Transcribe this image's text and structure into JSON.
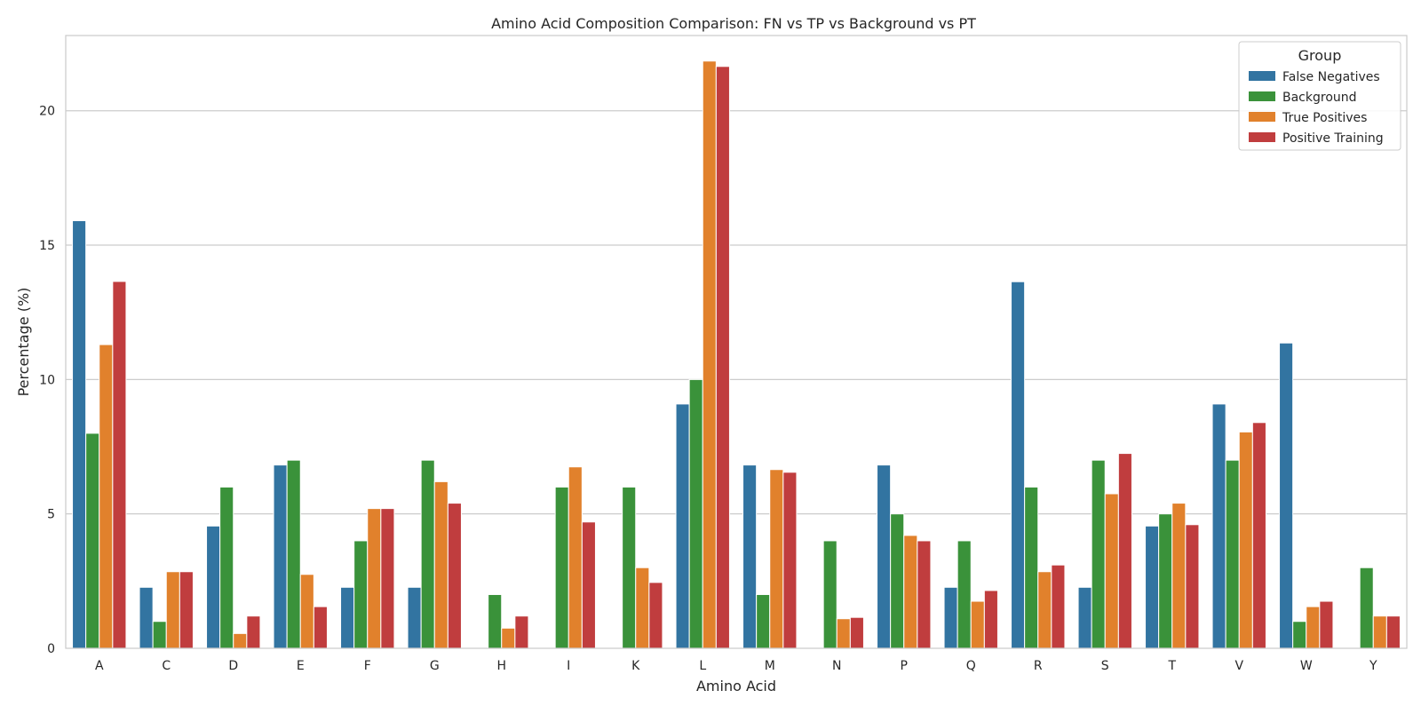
{
  "chart_data": {
    "type": "bar",
    "title": "Amino Acid Composition Comparison: FN vs TP vs Background vs PT",
    "xlabel": "Amino Acid",
    "ylabel": "Percentage (%)",
    "ylim": [
      0,
      22.8
    ],
    "yticks": [
      0,
      5,
      10,
      15,
      20
    ],
    "ytick_labels": [
      "0",
      "5",
      "10",
      "15",
      "20"
    ],
    "grid": true,
    "legend": {
      "title": "Group",
      "placement": "top-right"
    },
    "categories": [
      "A",
      "C",
      "D",
      "E",
      "F",
      "G",
      "H",
      "I",
      "K",
      "L",
      "M",
      "N",
      "P",
      "Q",
      "R",
      "S",
      "T",
      "V",
      "W",
      "Y"
    ],
    "series": [
      {
        "name": "False Negatives",
        "color": "#3274a1",
        "values": [
          15.91,
          2.27,
          4.55,
          6.82,
          2.27,
          2.27,
          0,
          0,
          0,
          9.09,
          6.82,
          0,
          6.82,
          2.27,
          13.64,
          2.27,
          4.55,
          9.09,
          11.36,
          0
        ]
      },
      {
        "name": "Background",
        "color": "#3a923a",
        "values": [
          8,
          1,
          6,
          7,
          4,
          7,
          2,
          6,
          6,
          10,
          2,
          4,
          5,
          4,
          6,
          7,
          5,
          7,
          1,
          3
        ]
      },
      {
        "name": "True Positives",
        "color": "#e1812c",
        "values": [
          11.3,
          2.85,
          0.55,
          2.75,
          5.2,
          6.2,
          0.75,
          6.75,
          3.0,
          21.85,
          6.65,
          1.1,
          4.2,
          1.75,
          2.85,
          5.75,
          5.4,
          8.05,
          1.55,
          1.2
        ]
      },
      {
        "name": "Positive Training",
        "color": "#c03d3e",
        "values": [
          13.65,
          2.85,
          1.2,
          1.55,
          5.2,
          5.4,
          1.2,
          4.7,
          2.45,
          21.65,
          6.55,
          1.15,
          4.0,
          2.15,
          3.1,
          7.25,
          4.6,
          8.4,
          1.75,
          1.2
        ]
      }
    ]
  }
}
